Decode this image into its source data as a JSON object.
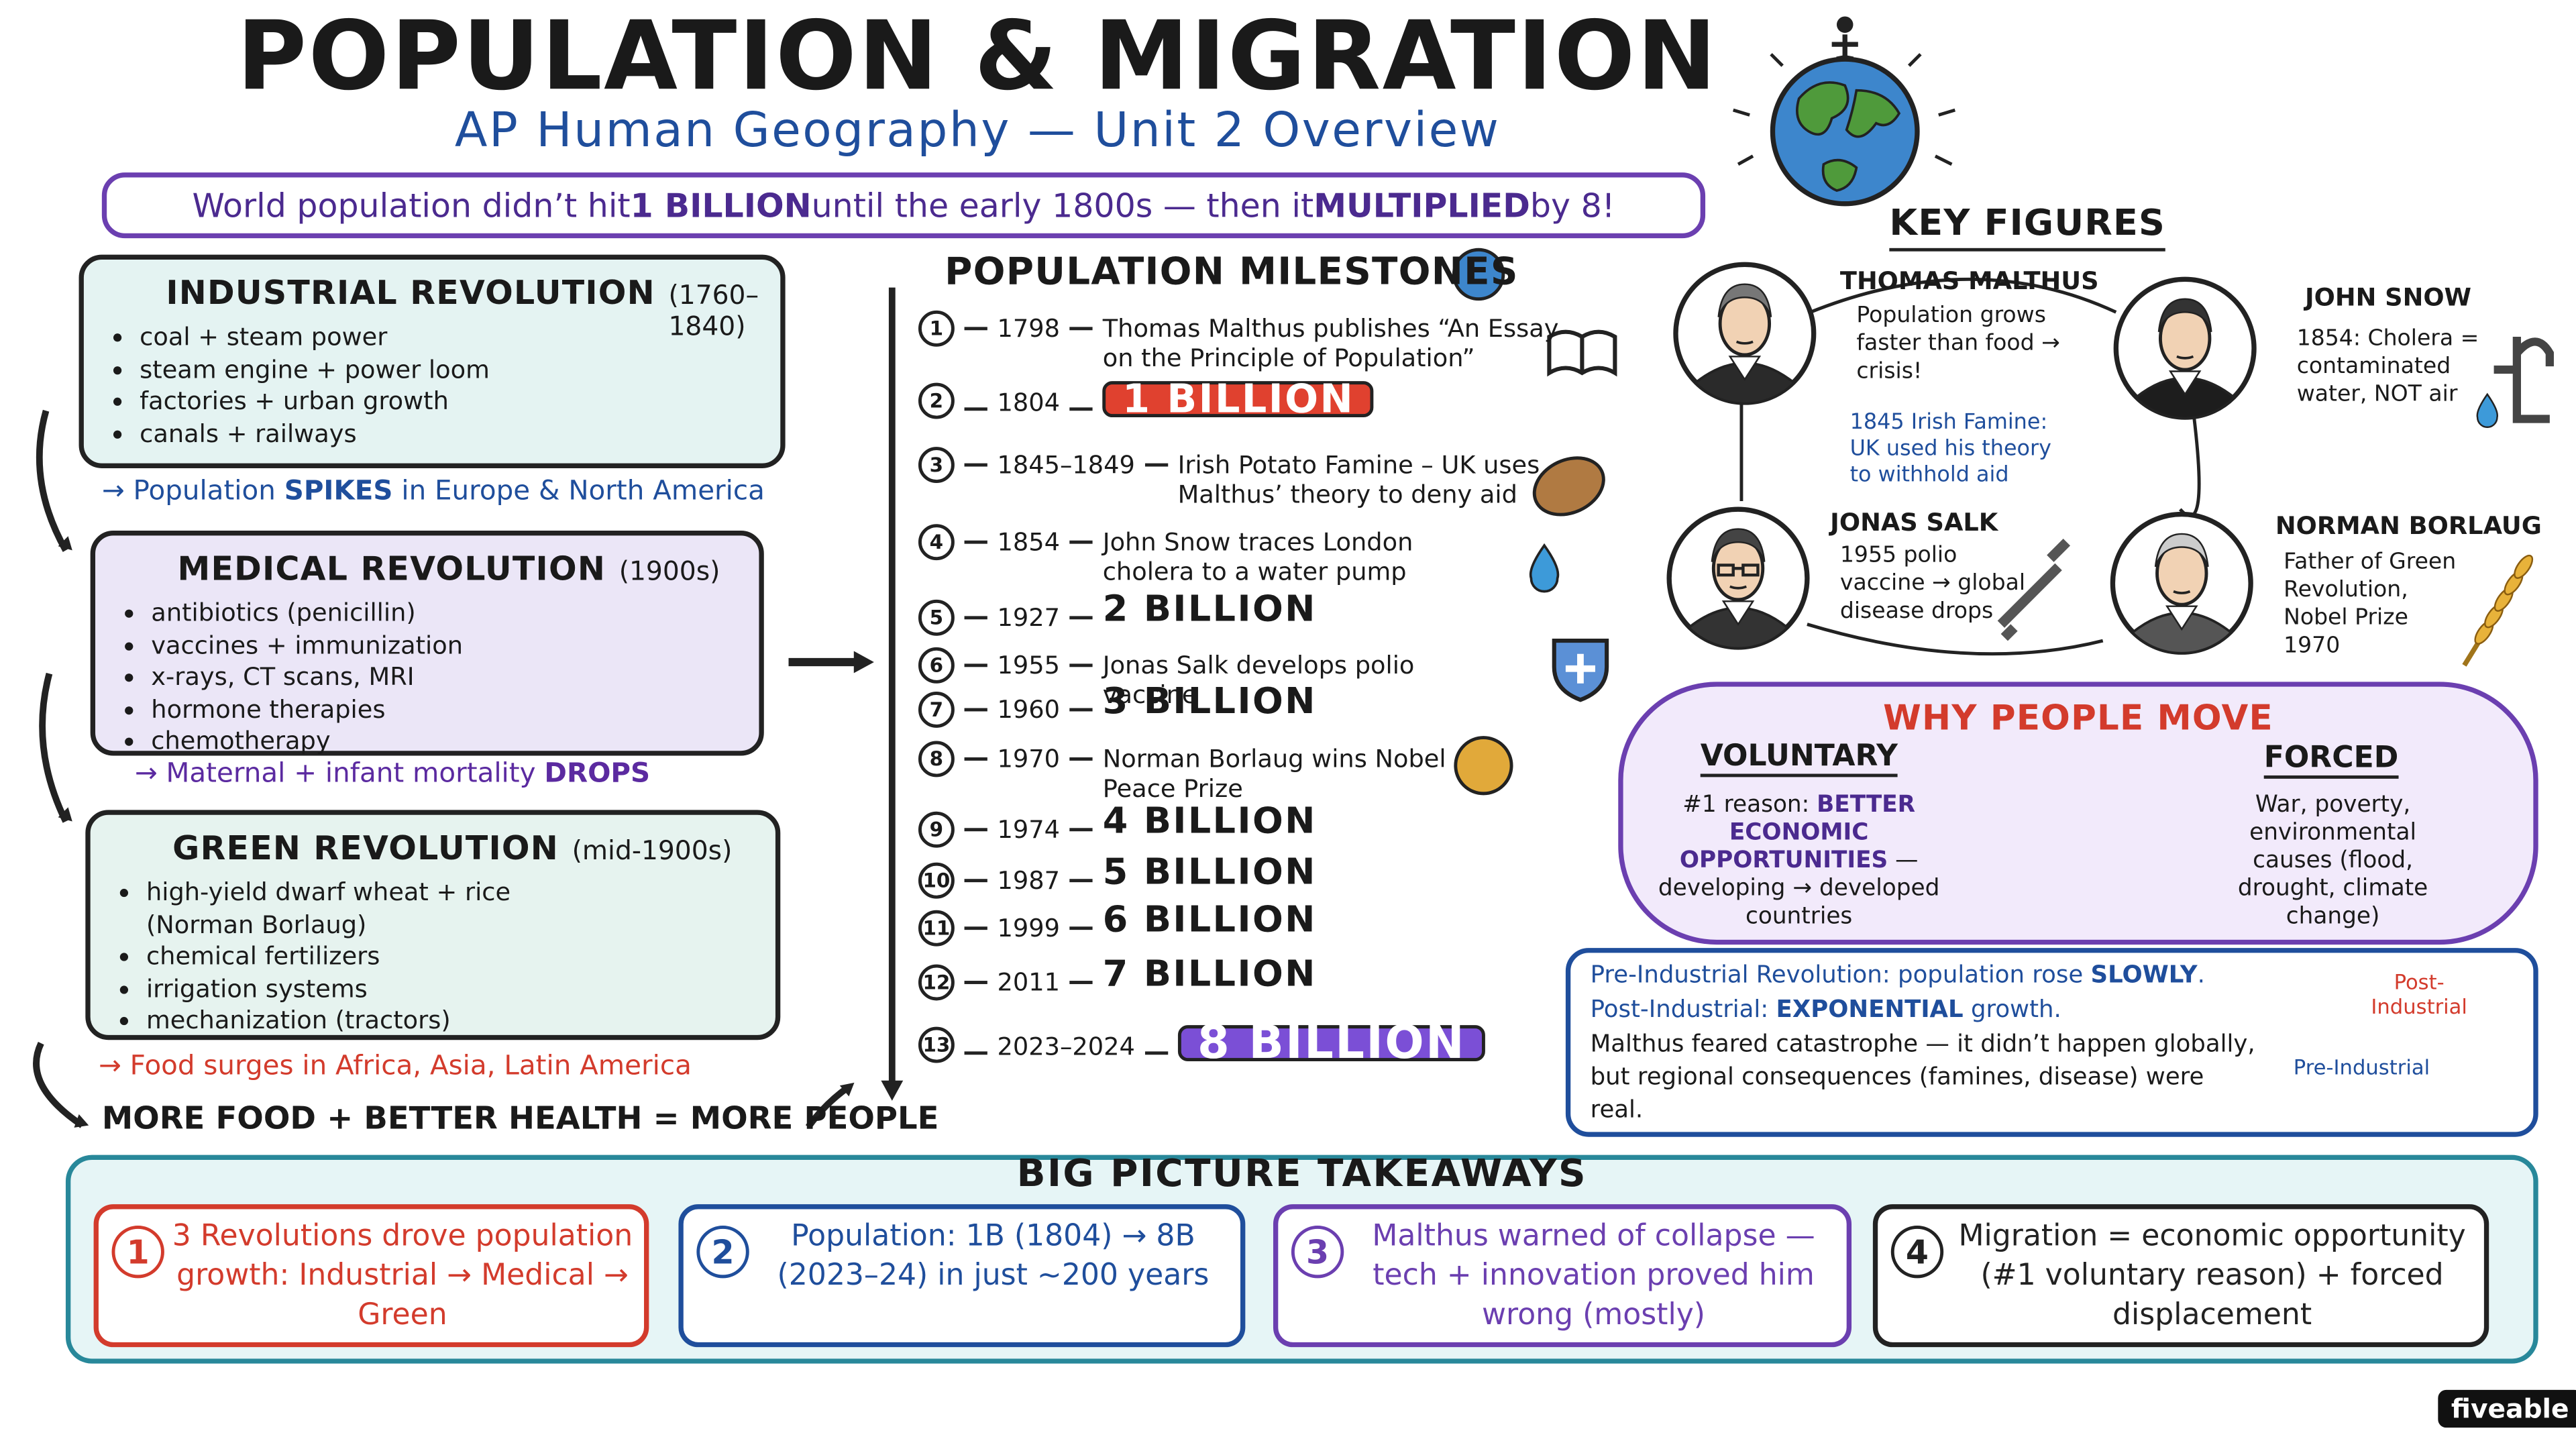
{
  "header": {
    "title": "POPULATION & MIGRATION",
    "subtitle": "AP Human Geography — Unit 2 Overview",
    "banner": [
      "World population didn’t hit ",
      "1 BILLION",
      " until the early 1800s — then it ",
      "MULTIPLIED",
      " by 8!"
    ]
  },
  "revolutions": [
    {
      "title": "INDUSTRIAL REVOLUTION",
      "dates": "(1760–1840)",
      "bullets": [
        "coal + steam power",
        "steam engine + power loom",
        "factories + urban growth",
        "canals + railways"
      ],
      "result": [
        "→ Population ",
        "SPIKES",
        " in Europe & North America"
      ]
    },
    {
      "title": "MEDICAL REVOLUTION",
      "dates": "(1900s)",
      "bullets": [
        "antibiotics (penicillin)",
        "vaccines + immunization",
        "x-rays, CT scans, MRI",
        "hormone therapies",
        "chemotherapy"
      ],
      "result": [
        "→ Maternal + infant mortality ",
        "DROPS"
      ]
    },
    {
      "title": "GREEN REVOLUTION",
      "dates": "(mid-1900s)",
      "bullets": [
        "high-yield dwarf wheat + rice (Norman Borlaug)",
        "chemical fertilizers",
        "irrigation systems",
        "mechanization (tractors)"
      ],
      "result": [
        "→ Food surges in Africa, Asia, Latin America"
      ]
    }
  ],
  "conclusion": "MORE FOOD + BETTER HEALTH = MORE PEOPLE",
  "milestones": {
    "title": "POPULATION MILESTONES",
    "items": [
      {
        "number": 1,
        "date": "1798",
        "text": "Thomas Malthus publishes “An Essay on the Principle of Population”"
      },
      {
        "number": 2,
        "date": "1804",
        "billion": "1 BILLION",
        "badge_color": "#e0412f"
      },
      {
        "number": 3,
        "date": "1845–1849",
        "text": "Irish Potato Famine – UK uses Malthus’ theory to deny aid"
      },
      {
        "number": 4,
        "date": "1854",
        "text": "John Snow traces London cholera to a water pump"
      },
      {
        "number": 5,
        "date": "1927",
        "billion": "2 BILLION"
      },
      {
        "number": 6,
        "date": "1955",
        "text": "Jonas Salk develops polio vaccine"
      },
      {
        "number": 7,
        "date": "1960",
        "billion": "3 BILLION"
      },
      {
        "number": 8,
        "date": "1970",
        "text": "Norman Borlaug wins Nobel Peace Prize"
      },
      {
        "number": 9,
        "date": "1974",
        "billion": "4 BILLION"
      },
      {
        "number": 10,
        "date": "1987",
        "billion": "5 BILLION"
      },
      {
        "number": 11,
        "date": "1999",
        "billion": "6 BILLION"
      },
      {
        "number": 12,
        "date": "2011",
        "billion": "7 BILLION"
      },
      {
        "number": 13,
        "date": "2023–2024",
        "billion": "8 BILLION",
        "badge_color": "#7b4fd6"
      }
    ]
  },
  "key_figures": {
    "title": "KEY FIGURES",
    "people": [
      {
        "name": "THOMAS MALTHUS",
        "text": "Population grows faster than food → crisis!",
        "note": "1845 Irish Famine: UK used his theory to withhold aid"
      },
      {
        "name": "JOHN SNOW",
        "text": "1854: Cholera = contaminated water, NOT air"
      },
      {
        "name": "JONAS SALK",
        "text": "1955 polio vaccine → global disease drops"
      },
      {
        "name": "NORMAN BORLAUG",
        "text": "Father of Green Revolution, Nobel Prize 1970"
      }
    ]
  },
  "why_people_move": {
    "title": "WHY PEOPLE MOVE",
    "voluntary": {
      "title": "VOLUNTARY",
      "text": [
        "#1 reason: ",
        "BETTER ECONOMIC OPPORTUNITIES",
        " — developing → developed countries"
      ]
    },
    "forced": {
      "title": "FORCED",
      "text": "War, poverty, environmental causes (flood, drought, climate change)"
    }
  },
  "growth": {
    "pre": [
      "Pre-Industrial Revolution: population rose ",
      "SLOWLY",
      "."
    ],
    "post": [
      "Post-Industrial: ",
      "EXPONENTIAL",
      " growth."
    ],
    "note": "Malthus feared catastrophe — it didn’t happen globally, but regional consequences (famines, disease) were real.",
    "chart": {
      "post_label": "Post-Industrial",
      "pre_label": "Pre-Industrial"
    }
  },
  "takeaways": {
    "title": "BIG PICTURE TAKEAWAYS",
    "items": [
      {
        "number": 1,
        "text": "3 Revolutions drove population growth: Industrial → Medical → Green"
      },
      {
        "number": 2,
        "text": "Population: 1B (1804) → 8B (2023–24) in just ~200 years"
      },
      {
        "number": 3,
        "text": "Malthus warned of collapse — tech + innovation proved him wrong (mostly)"
      },
      {
        "number": 4,
        "text": "Migration = economic opportunity (#1 voluntary reason) + forced displacement"
      }
    ]
  },
  "brand": "fiveable"
}
